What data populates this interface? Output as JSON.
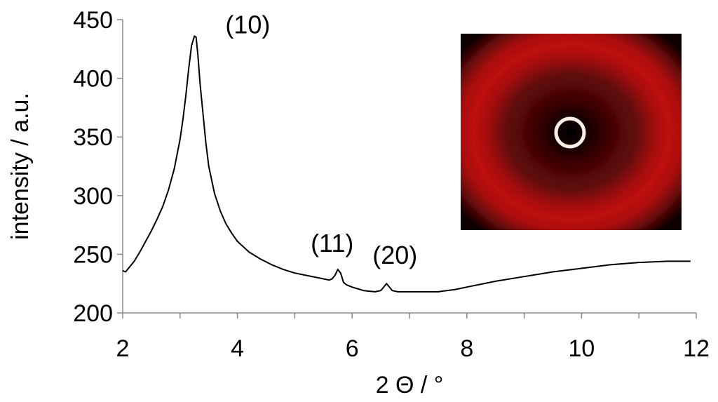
{
  "chart_data": {
    "type": "line",
    "title": "",
    "xlabel": "2 Θ / °",
    "ylabel": "intensity / a.u.",
    "xlim": [
      2,
      12
    ],
    "ylim": [
      200,
      450
    ],
    "x_ticks": [
      2,
      4,
      6,
      8,
      10,
      12
    ],
    "y_ticks": [
      200,
      250,
      300,
      350,
      400,
      450
    ],
    "x_tick_labels": [
      "2",
      "4",
      "6",
      "8",
      "10",
      "12"
    ],
    "y_tick_labels": [
      "200",
      "250",
      "300",
      "350",
      "400",
      "450"
    ],
    "grid": false,
    "series": [
      {
        "color": "#000000",
        "x": [
          2.0,
          2.05,
          2.1,
          2.2,
          2.3,
          2.4,
          2.5,
          2.6,
          2.7,
          2.8,
          2.9,
          3.0,
          3.05,
          3.1,
          3.15,
          3.2,
          3.25,
          3.28,
          3.31,
          3.35,
          3.4,
          3.45,
          3.5,
          3.6,
          3.7,
          3.8,
          3.9,
          4.0,
          4.2,
          4.4,
          4.6,
          4.8,
          5.0,
          5.2,
          5.4,
          5.5,
          5.6,
          5.65,
          5.7,
          5.75,
          5.8,
          5.85,
          5.9,
          6.0,
          6.2,
          6.4,
          6.5,
          6.55,
          6.6,
          6.65,
          6.7,
          6.8,
          7.0,
          7.2,
          7.5,
          7.8,
          8.0,
          8.5,
          9.0,
          9.5,
          10.0,
          10.5,
          11.0,
          11.5,
          11.9
        ],
        "y": [
          236,
          235,
          238,
          244,
          252,
          261,
          270,
          280,
          291,
          305,
          323,
          348,
          365,
          385,
          408,
          428,
          436,
          435,
          420,
          395,
          370,
          345,
          325,
          302,
          287,
          276,
          268,
          261,
          252,
          246,
          241,
          237,
          234,
          232,
          230,
          229,
          228,
          229,
          232,
          237,
          234,
          226,
          224,
          222,
          219,
          218,
          219,
          222,
          225,
          222,
          219,
          218,
          218,
          218,
          218,
          220,
          222,
          227,
          231,
          235,
          238,
          241,
          243,
          244,
          244
        ]
      }
    ],
    "annotations": [
      {
        "text": "(10)",
        "x": 3.3,
        "y": 436
      },
      {
        "text": "(11)",
        "x": 5.75,
        "y": 237
      },
      {
        "text": "(20)",
        "x": 6.6,
        "y": 225
      }
    ],
    "inset": {
      "type": "image",
      "description_color_outer": "#c81010",
      "ring_color": "#ffe8d8"
    }
  }
}
